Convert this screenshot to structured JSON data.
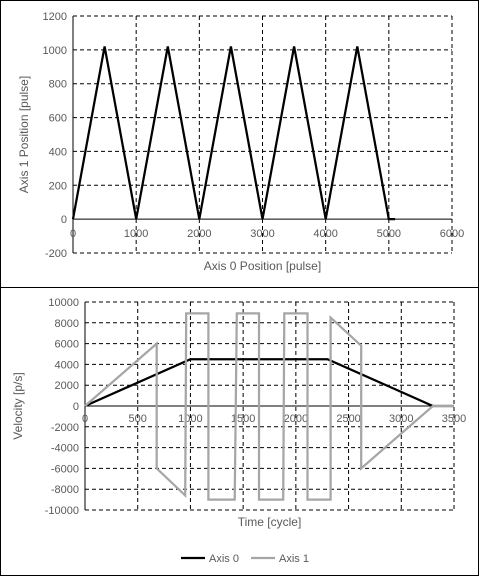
{
  "colors": {
    "axis0": "#000000",
    "axis1": "#a6a6a6",
    "grid": "#000000",
    "text": "#595959"
  },
  "chart_data": [
    {
      "type": "line",
      "xlabel": "Axis 0 Position [pulse]",
      "ylabel": "Axis 1 Position [pulse]",
      "xlim": [
        0,
        6000
      ],
      "ylim": [
        -200,
        1200
      ],
      "xticks": [
        0,
        1000,
        2000,
        3000,
        4000,
        5000,
        6000
      ],
      "yticks": [
        -200,
        0,
        200,
        400,
        600,
        800,
        1000,
        1200
      ],
      "grid": true,
      "series": [
        {
          "color": "#000000",
          "x": [
            0,
            500,
            1000,
            1500,
            2000,
            2500,
            3000,
            3500,
            4000,
            4500,
            5000,
            5100
          ],
          "y": [
            0,
            1020,
            0,
            1020,
            0,
            1020,
            0,
            1020,
            0,
            1020,
            0,
            0
          ]
        }
      ]
    },
    {
      "type": "line",
      "xlabel": "Time [cycle]",
      "ylabel": "Velocity [p/s]",
      "xlim": [
        0,
        3500
      ],
      "ylim": [
        -10000,
        10000
      ],
      "xticks": [
        0,
        500,
        1000,
        1500,
        2000,
        2500,
        3000,
        3500
      ],
      "yticks": [
        -10000,
        -8000,
        -6000,
        -4000,
        -2000,
        0,
        2000,
        4000,
        6000,
        8000,
        10000
      ],
      "grid": true,
      "legend_position": "bottom",
      "series": [
        {
          "name": "Axis 0",
          "color": "#000000",
          "x": [
            0,
            1000,
            2300,
            3300,
            3500
          ],
          "y": [
            0,
            4500,
            4500,
            0,
            0
          ]
        },
        {
          "name": "Axis 1",
          "color": "#a6a6a6",
          "x": [
            0,
            680,
            680,
            950,
            960,
            1170,
            1170,
            1420,
            1440,
            1650,
            1650,
            1880,
            1890,
            2110,
            2110,
            2330,
            2330,
            2620,
            2620,
            3300,
            3500
          ],
          "y": [
            0,
            6000,
            -6000,
            -8600,
            8900,
            8900,
            -9000,
            -9000,
            8900,
            8900,
            -9000,
            -9000,
            8900,
            8900,
            -9000,
            -9000,
            8500,
            5800,
            -6000,
            0,
            0
          ]
        }
      ]
    }
  ]
}
